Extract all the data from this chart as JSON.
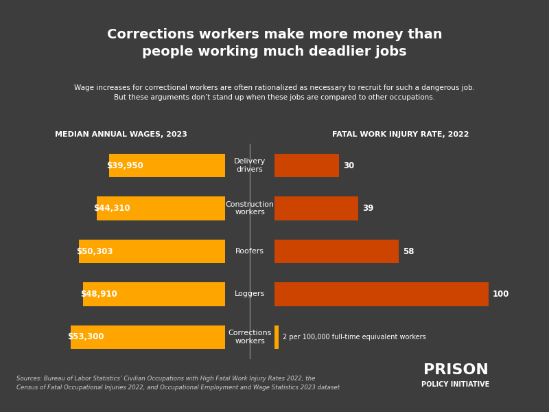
{
  "title": "Corrections workers make more money than\npeople working much deadlier jobs",
  "subtitle": "Wage increases for correctional workers are often rationalized as necessary to recruit for such a dangerous job.\nBut these arguments don’t stand up when these jobs are compared to other occupations.",
  "left_header": "MEDIAN ANNUAL WAGES, 2023",
  "right_header": "FATAL WORK INJURY RATE, 2022",
  "categories": [
    "Corrections\nworkers",
    "Loggers",
    "Roofers",
    "Construction\nworkers",
    "Delivery\ndrivers"
  ],
  "wages": [
    53300,
    48910,
    50303,
    44310,
    39950
  ],
  "wage_labels": [
    "$53,300",
    "$48,910",
    "$50,303",
    "$44,310",
    "$39,950"
  ],
  "injury_rates": [
    2,
    100,
    58,
    39,
    30
  ],
  "injury_labels": [
    "2 per 100,000 full-time equivalent workers",
    "100",
    "58",
    "39",
    "30"
  ],
  "wage_color": "#FFA500",
  "injury_color_corrections": "#FFA500",
  "injury_color_others": "#CC4400",
  "bg_color": "#3d3d3d",
  "text_color": "#ffffff",
  "source_text": "Sources: Bureau of Labor Statistics’ Civilian Occupations with High Fatal Work Injury Rates 2022, the\nCensus of Fatal Occupational Injuries 2022, and Occupational Employment and Wage Statistics 2023 dataset",
  "logo_text_top": "PRISON",
  "logo_text_bottom": "POLICY INITIATIVE"
}
